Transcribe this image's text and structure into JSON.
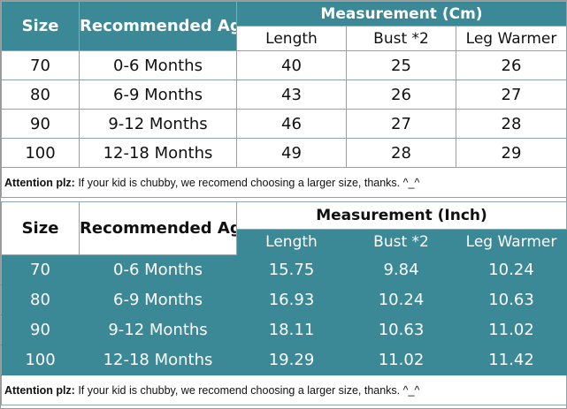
{
  "cm_table": {
    "col_size": "Size",
    "col_age": "Recommended Age",
    "measurement_title": "Measurement (Cm)",
    "sub_length": "Length",
    "sub_bust": "Bust *2",
    "sub_leg": "Leg Warmer",
    "rows": [
      {
        "size": "70",
        "age": "0-6 Months",
        "length": "40",
        "bust": "25",
        "leg": "26"
      },
      {
        "size": "80",
        "age": "6-9 Months",
        "length": "43",
        "bust": "26",
        "leg": "27"
      },
      {
        "size": "90",
        "age": "9-12 Months",
        "length": "46",
        "bust": "27",
        "leg": "28"
      },
      {
        "size": "100",
        "age": "12-18 Months",
        "length": "49",
        "bust": "28",
        "leg": "29"
      }
    ],
    "note_label": "Attention plz:",
    "note_text": " If your kid is chubby, we recomend choosing a larger size, thanks. ^_^"
  },
  "inch_table": {
    "col_size": "Size",
    "col_age": "Recommended Age",
    "measurement_title": "Measurement (Inch)",
    "sub_length": "Length",
    "sub_bust": "Bust *2",
    "sub_leg": "Leg Warmer",
    "rows": [
      {
        "size": "70",
        "age": "0-6 Months",
        "length": "15.75",
        "bust": "9.84",
        "leg": "10.24"
      },
      {
        "size": "80",
        "age": "6-9 Months",
        "length": "16.93",
        "bust": "10.24",
        "leg": "10.63"
      },
      {
        "size": "90",
        "age": "9-12 Months",
        "length": "18.11",
        "bust": "10.63",
        "leg": "11.02"
      },
      {
        "size": "100",
        "age": "12-18 Months",
        "length": "19.29",
        "bust": "11.02",
        "leg": "11.42"
      }
    ],
    "note_label": "Attention plz:",
    "note_text": " If your kid is chubby, we recomend choosing a larger size, thanks. ^_^"
  },
  "colors": {
    "teal": "#3b8896",
    "white": "#ffffff",
    "text": "#111111"
  }
}
